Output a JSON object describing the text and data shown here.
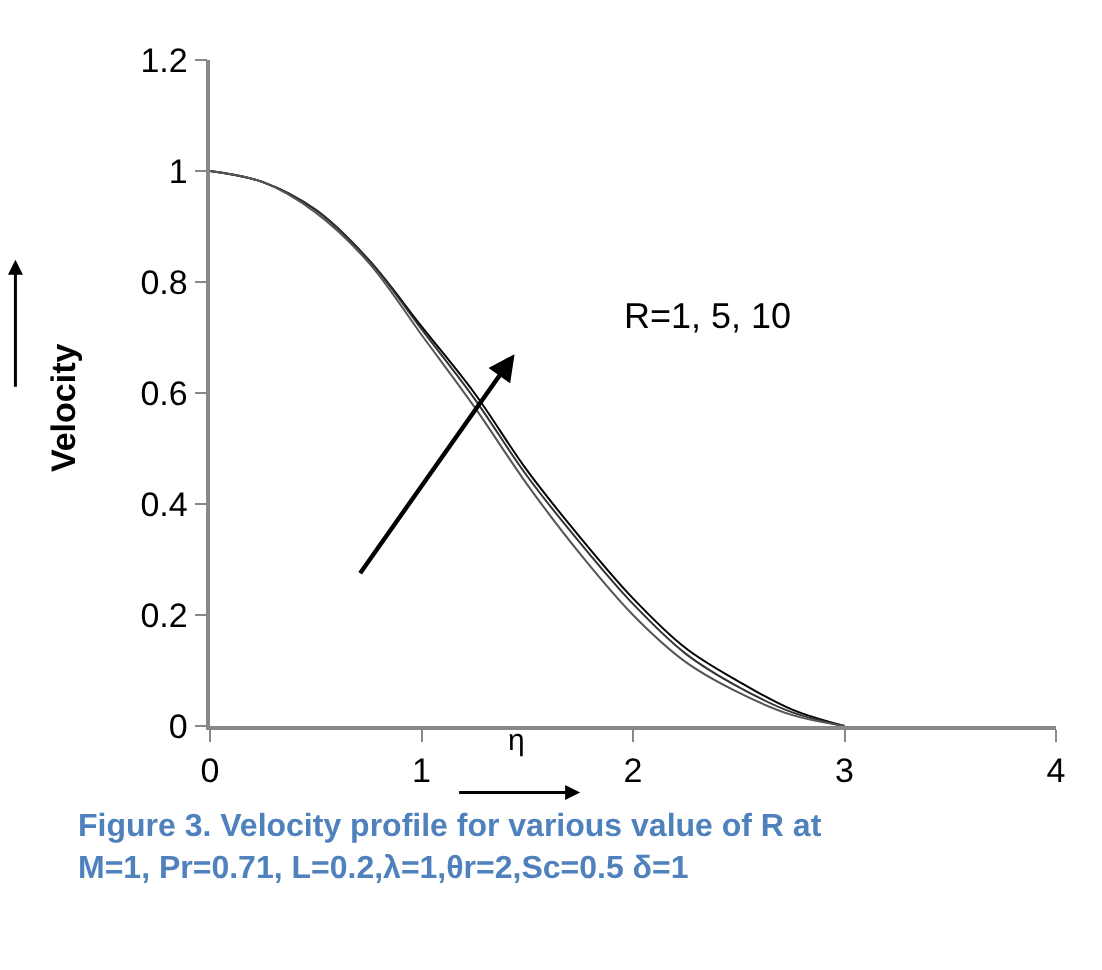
{
  "chart_data": {
    "type": "line",
    "xlabel": "η",
    "ylabel": "Velocity",
    "x": [
      0,
      0.25,
      0.5,
      0.75,
      1,
      1.25,
      1.5,
      1.75,
      2,
      2.25,
      2.5,
      2.75,
      3
    ],
    "series": [
      {
        "color": "#000000",
        "values": [
          1,
          0.98,
          0.93,
          0.84,
          0.72,
          0.6,
          0.46,
          0.34,
          0.23,
          0.14,
          0.08,
          0.03,
          0
        ]
      },
      {
        "color": "#333333",
        "values": [
          1,
          0.98,
          0.93,
          0.84,
          0.715,
          0.59,
          0.45,
          0.33,
          0.22,
          0.13,
          0.07,
          0.025,
          0
        ]
      },
      {
        "color": "#555555",
        "values": [
          1,
          0.98,
          0.925,
          0.835,
          0.705,
          0.575,
          0.435,
          0.31,
          0.2,
          0.115,
          0.06,
          0.02,
          0
        ]
      }
    ],
    "xlim": [
      0,
      4
    ],
    "xticks": [
      0,
      1,
      2,
      3,
      4
    ],
    "ylim": [
      0,
      1.2
    ],
    "yticks": [
      0,
      0.2,
      0.4,
      0.6,
      0.8,
      1,
      1.2
    ],
    "grid": false,
    "marker": "none",
    "line_style": "solid",
    "annotations": [
      "R=1, 5, 10",
      "Figure 3. Velocity profile for various value of R at\nM=1, Pr=0.71, L=0.2,λ=1,θr=2,Sc=0.5 δ=1"
    ]
  }
}
